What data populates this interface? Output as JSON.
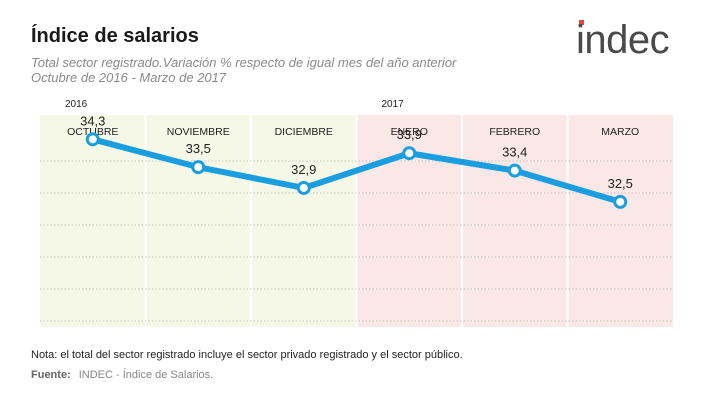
{
  "title": "Índice de salarios",
  "subtitle_line1": "Total sector registrado.Variación % respecto de igual mes del año anterior",
  "subtitle_line2": "Octubre de 2016 - Marzo de 2017",
  "logo_text": "indec",
  "note": "Nota: el total del sector registrado incluye el sector privado registrado y el sector público.",
  "source_label": "Fuente:",
  "source_text": "INDEC - Índice de Salarios.",
  "colors": {
    "line": "#1a9ee0",
    "band_2016": "#f5f8e6",
    "band_2017": "#f9e8e6",
    "logo_dark": "#4a4a4a",
    "logo_red": "#e8443a"
  },
  "chart_data": {
    "type": "line",
    "year_labels": [
      {
        "label": "2016",
        "category_index": 0
      },
      {
        "label": "2017",
        "category_index": 3
      }
    ],
    "categories": [
      "OCTUBRE",
      "NOVIEMBRE",
      "DICIEMBRE",
      "ENERO",
      "FEBRERO",
      "MARZO"
    ],
    "series": [
      {
        "values": [
          34.3,
          33.5,
          32.9,
          33.9,
          33.4,
          32.5
        ]
      }
    ],
    "data_labels": [
      "34,3",
      "33,5",
      "32,9",
      "33,9",
      "33,4",
      "32,5"
    ],
    "ylim": [
      28.9,
      35.0
    ],
    "grid": true,
    "legend": "none"
  }
}
